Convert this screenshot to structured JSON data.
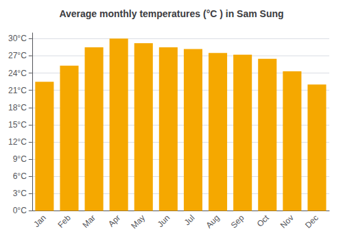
{
  "chart_data": {
    "type": "bar",
    "title": "Average monthly temperatures (°C ) in Sam Sung",
    "categories": [
      "Jan",
      "Feb",
      "Mar",
      "Apr",
      "May",
      "Jun",
      "Jul",
      "Aug",
      "Sep",
      "Oct",
      "Nov",
      "Dec"
    ],
    "values": [
      22.5,
      25.3,
      28.5,
      30.0,
      29.2,
      28.5,
      28.2,
      27.5,
      27.2,
      26.5,
      24.3,
      22.0
    ],
    "color": "#F5A800",
    "ylim": [
      0,
      31
    ],
    "yticks": [
      {
        "value": 0,
        "label": "0°C"
      },
      {
        "value": 3,
        "label": "3°C"
      },
      {
        "value": 6,
        "label": "6°C"
      },
      {
        "value": 9,
        "label": "9°C"
      },
      {
        "value": 12,
        "label": "12°C"
      },
      {
        "value": 15,
        "label": "15°C"
      },
      {
        "value": 18,
        "label": "18°C"
      },
      {
        "value": 21,
        "label": "21°C"
      },
      {
        "value": 24,
        "label": "24°C"
      },
      {
        "value": 27,
        "label": "27°C"
      },
      {
        "value": 30,
        "label": "30°C"
      }
    ],
    "grid": true
  }
}
